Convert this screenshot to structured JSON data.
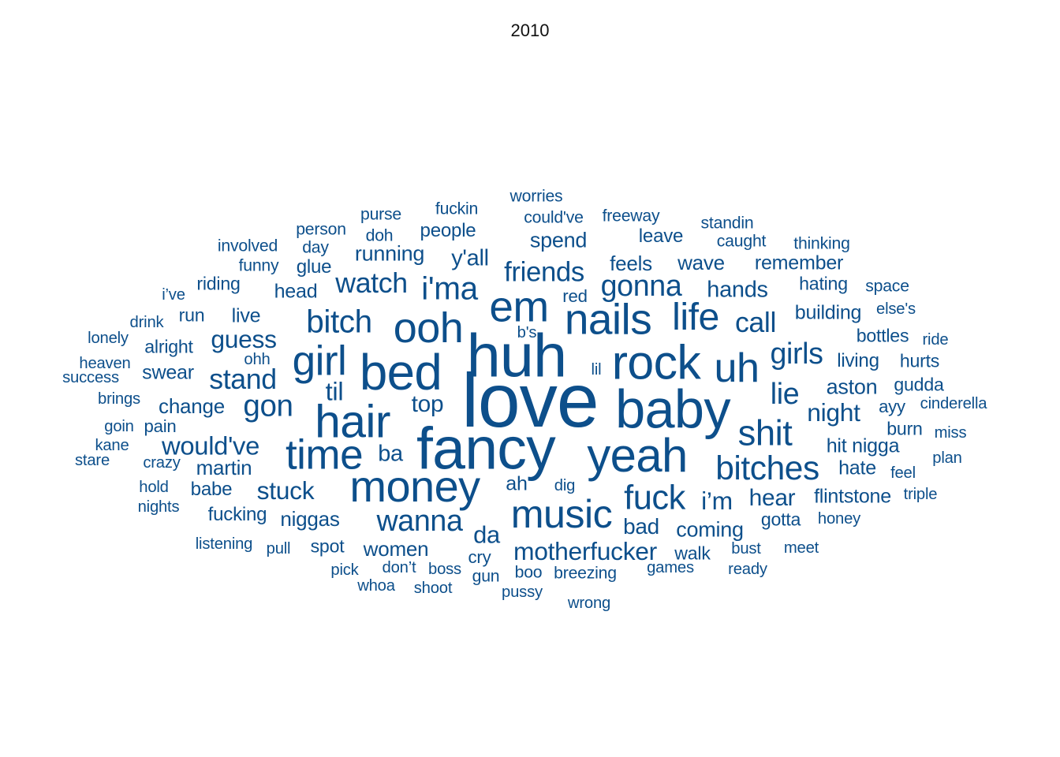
{
  "chart_data": {
    "type": "wordcloud",
    "title": "2010",
    "color": "#0d4f8b",
    "words": [
      {
        "text": "love",
        "weight": 100
      },
      {
        "text": "fancy",
        "weight": 78
      },
      {
        "text": "huh",
        "weight": 80
      },
      {
        "text": "baby",
        "weight": 71
      },
      {
        "text": "bed",
        "weight": 66
      },
      {
        "text": "rock",
        "weight": 63
      },
      {
        "text": "hair",
        "weight": 61
      },
      {
        "text": "yeah",
        "weight": 62
      },
      {
        "text": "money",
        "weight": 58
      },
      {
        "text": "nails",
        "weight": 57
      },
      {
        "text": "em",
        "weight": 57
      },
      {
        "text": "ooh",
        "weight": 56
      },
      {
        "text": "time",
        "weight": 55
      },
      {
        "text": "girl",
        "weight": 55
      },
      {
        "text": "uh",
        "weight": 54
      },
      {
        "text": "music",
        "weight": 52
      },
      {
        "text": "life",
        "weight": 50
      },
      {
        "text": "shit",
        "weight": 47
      },
      {
        "text": "fuck",
        "weight": 45
      },
      {
        "text": "bitches",
        "weight": 44
      },
      {
        "text": "bitch",
        "weight": 42
      },
      {
        "text": "i'ma",
        "weight": 42
      },
      {
        "text": "gon",
        "weight": 40
      },
      {
        "text": "lie",
        "weight": 39
      },
      {
        "text": "wanna",
        "weight": 39
      },
      {
        "text": "gonna",
        "weight": 39
      },
      {
        "text": "girls",
        "weight": 39
      },
      {
        "text": "stand",
        "weight": 37
      },
      {
        "text": "watch",
        "weight": 37
      },
      {
        "text": "call",
        "weight": 37
      },
      {
        "text": "friends",
        "weight": 36
      },
      {
        "text": "would've",
        "weight": 34
      },
      {
        "text": "til",
        "weight": 34
      },
      {
        "text": "guess",
        "weight": 33
      },
      {
        "text": "motherfucker",
        "weight": 33
      },
      {
        "text": "night",
        "weight": 33
      },
      {
        "text": "stuck",
        "weight": 33
      },
      {
        "text": "i’m",
        "weight": 33
      },
      {
        "text": "da",
        "weight": 32
      },
      {
        "text": "top",
        "weight": 31
      },
      {
        "text": "hear",
        "weight": 31
      },
      {
        "text": "hands",
        "weight": 30
      },
      {
        "text": "ba",
        "weight": 30
      },
      {
        "text": "y'all",
        "weight": 30
      },
      {
        "text": "bad",
        "weight": 29
      },
      {
        "text": "coming",
        "weight": 28
      },
      {
        "text": "aston",
        "weight": 28
      },
      {
        "text": "spend",
        "weight": 28
      },
      {
        "text": "running",
        "weight": 28
      },
      {
        "text": "feels",
        "weight": 27
      },
      {
        "text": "wave",
        "weight": 27
      },
      {
        "text": "women",
        "weight": 27
      },
      {
        "text": "niggas",
        "weight": 27
      },
      {
        "text": "martin",
        "weight": 27
      },
      {
        "text": "change",
        "weight": 27
      },
      {
        "text": "building",
        "weight": 26
      },
      {
        "text": "swear",
        "weight": 26
      },
      {
        "text": "hit nigga",
        "weight": 26
      },
      {
        "text": "hate",
        "weight": 26
      },
      {
        "text": "flintstone",
        "weight": 26
      },
      {
        "text": "head",
        "weight": 26
      },
      {
        "text": "remember",
        "weight": 26
      },
      {
        "text": "ah",
        "weight": 26
      },
      {
        "text": "live",
        "weight": 26
      },
      {
        "text": "people",
        "weight": 25
      },
      {
        "text": "leave",
        "weight": 25
      },
      {
        "text": "glue",
        "weight": 25
      },
      {
        "text": "babe",
        "weight": 25
      },
      {
        "text": "fucking",
        "weight": 25
      },
      {
        "text": "living",
        "weight": 25
      },
      {
        "text": "bottles",
        "weight": 24
      },
      {
        "text": "hating",
        "weight": 24
      },
      {
        "text": "riding",
        "weight": 24
      },
      {
        "text": "walk",
        "weight": 24
      },
      {
        "text": "gudda",
        "weight": 24
      },
      {
        "text": "hurts",
        "weight": 24
      },
      {
        "text": "alright",
        "weight": 24
      },
      {
        "text": "burn",
        "weight": 24
      },
      {
        "text": "gotta",
        "weight": 24
      },
      {
        "text": "spot",
        "weight": 24
      },
      {
        "text": "run",
        "weight": 24
      },
      {
        "text": "ayy",
        "weight": 23
      },
      {
        "text": "cry",
        "weight": 23
      },
      {
        "text": "red",
        "weight": 23
      },
      {
        "text": "pain",
        "weight": 23
      },
      {
        "text": "freeway",
        "weight": 22
      },
      {
        "text": "could've",
        "weight": 22
      },
      {
        "text": "worries",
        "weight": 22
      },
      {
        "text": "fuckin",
        "weight": 22
      },
      {
        "text": "purse",
        "weight": 22
      },
      {
        "text": "doh",
        "weight": 22
      },
      {
        "text": "person",
        "weight": 22
      },
      {
        "text": "day",
        "weight": 22
      },
      {
        "text": "involved",
        "weight": 22
      },
      {
        "text": "funny",
        "weight": 22
      },
      {
        "text": "standin",
        "weight": 22
      },
      {
        "text": "caught",
        "weight": 22
      },
      {
        "text": "thinking",
        "weight": 22
      },
      {
        "text": "space",
        "weight": 22
      },
      {
        "text": "else's",
        "weight": 21
      },
      {
        "text": "ride",
        "weight": 21
      },
      {
        "text": "cinderella",
        "weight": 21
      },
      {
        "text": "miss",
        "weight": 21
      },
      {
        "text": "plan",
        "weight": 21
      },
      {
        "text": "feel",
        "weight": 21
      },
      {
        "text": "triple",
        "weight": 21
      },
      {
        "text": "honey",
        "weight": 21
      },
      {
        "text": "meet",
        "weight": 21
      },
      {
        "text": "bust",
        "weight": 21
      },
      {
        "text": "ready",
        "weight": 21
      },
      {
        "text": "games",
        "weight": 21
      },
      {
        "text": "breezing",
        "weight": 22
      },
      {
        "text": "boo",
        "weight": 22
      },
      {
        "text": "wrong",
        "weight": 21
      },
      {
        "text": "pussy",
        "weight": 21
      },
      {
        "text": "gun",
        "weight": 22
      },
      {
        "text": "boss",
        "weight": 21
      },
      {
        "text": "don’t",
        "weight": 21
      },
      {
        "text": "shoot",
        "weight": 21
      },
      {
        "text": "whoa",
        "weight": 21
      },
      {
        "text": "pick",
        "weight": 21
      },
      {
        "text": "pull",
        "weight": 21
      },
      {
        "text": "listening",
        "weight": 21
      },
      {
        "text": "nights",
        "weight": 21
      },
      {
        "text": "hold",
        "weight": 21
      },
      {
        "text": "crazy",
        "weight": 21
      },
      {
        "text": "stare",
        "weight": 21
      },
      {
        "text": "kane",
        "weight": 21
      },
      {
        "text": "goin",
        "weight": 21
      },
      {
        "text": "brings",
        "weight": 21
      },
      {
        "text": "success",
        "weight": 21
      },
      {
        "text": "heaven",
        "weight": 21
      },
      {
        "text": "lonely",
        "weight": 21
      },
      {
        "text": "drink",
        "weight": 21
      },
      {
        "text": "i’ve",
        "weight": 21
      },
      {
        "text": "ohh",
        "weight": 21
      },
      {
        "text": "b's",
        "weight": 21
      },
      {
        "text": "lil",
        "weight": 21
      },
      {
        "text": "dig",
        "weight": 21
      }
    ]
  }
}
